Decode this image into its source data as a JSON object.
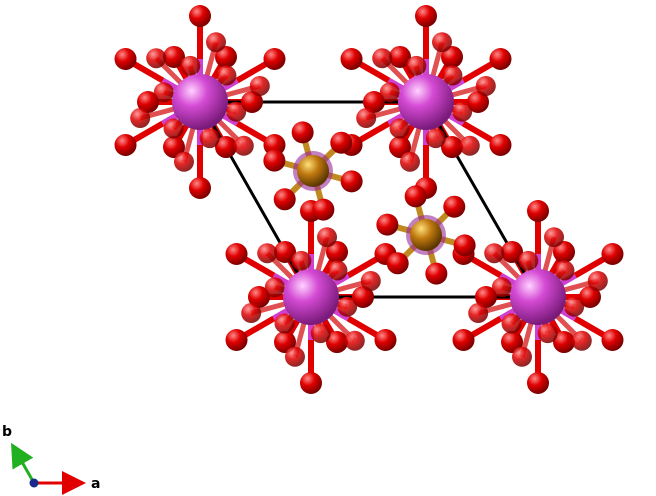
{
  "axes": {
    "a_label": "a",
    "b_label": "b"
  },
  "colors": {
    "cell_edge": "#000000",
    "oxygen": "#e00000",
    "big_atom": "#cc33cc",
    "small_atom": "#b8730a",
    "axis_a": "#e00000",
    "axis_b": "#20b020",
    "axis_c": "#1a2a8a"
  },
  "icons": {
    "origin": "c-axis-dot-icon"
  }
}
